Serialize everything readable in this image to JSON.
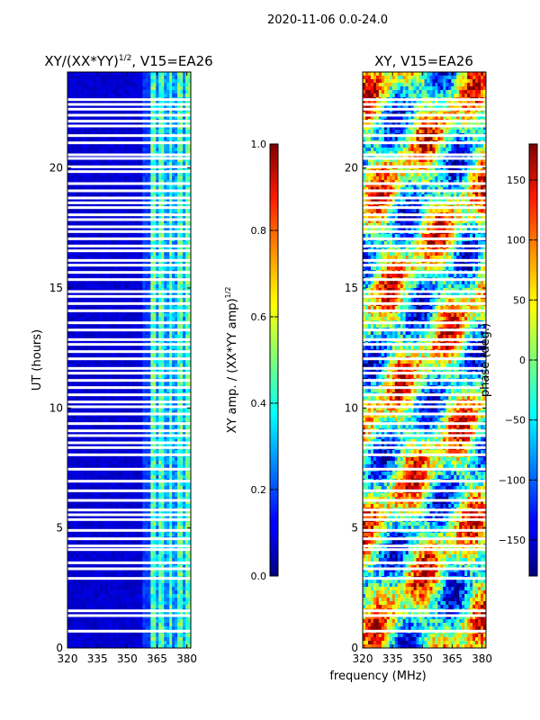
{
  "figure_title": "2020-11-06 0.0-24.0",
  "xlabel_shared": "frequency (MHz)",
  "chart_data": [
    {
      "type": "heatmap",
      "title": "XY/(XX*YY)",
      "title_sup": "1/2",
      "title_suffix": ", V15=EA26",
      "ylabel": "UT (hours)",
      "xlim": [
        320,
        382
      ],
      "ylim": [
        0,
        24
      ],
      "xticks": [
        320,
        335,
        350,
        365,
        380
      ],
      "yticks": [
        0,
        5,
        10,
        15,
        20
      ],
      "colormap": "jet",
      "colorbar": {
        "label": "XY amp. / (XX*YY amp)",
        "label_sup": "1/2",
        "range": [
          0.0,
          1.0
        ],
        "ticks": [
          0.0,
          0.2,
          0.4,
          0.6,
          0.8,
          1.0
        ],
        "tick_labels": [
          "0.0",
          "0.2",
          "0.4",
          "0.6",
          "0.8",
          "1.0"
        ]
      },
      "band_structure": [
        {
          "from": 320,
          "to": 358,
          "typical_value": 0.05
        },
        {
          "from": 358,
          "to": 362,
          "typical_value": 0.15
        },
        {
          "from": 362,
          "to": 382,
          "typical_value": 0.4
        }
      ]
    },
    {
      "type": "heatmap",
      "title": "XY, V15=EA26",
      "xlim": [
        320,
        382
      ],
      "ylim": [
        0,
        24
      ],
      "xticks": [
        320,
        335,
        350,
        365,
        380
      ],
      "yticks": [
        0,
        5,
        10,
        15,
        20
      ],
      "colormap": "jet",
      "colorbar": {
        "label": "phase (deg.)",
        "range": [
          -180,
          180
        ],
        "ticks": [
          -150,
          -100,
          -50,
          0,
          50,
          100,
          150
        ],
        "tick_labels": [
          "−150",
          "−100",
          "−50",
          "0",
          "50",
          "100",
          "150"
        ]
      }
    }
  ],
  "flagged_hours": [
    0.7,
    1.35,
    1.55,
    2.9,
    3.3,
    3.55,
    4.1,
    4.25,
    4.55,
    4.9,
    5.35,
    5.55,
    5.75,
    6.15,
    6.55,
    6.95,
    7.45,
    8.05,
    8.35,
    8.55,
    8.85,
    9.05,
    9.35,
    9.75,
    10.05,
    10.25,
    10.55,
    10.85,
    11.15,
    11.45,
    11.65,
    12.05,
    12.35,
    12.65,
    12.85,
    13.25,
    13.55,
    14.05,
    14.35,
    14.65,
    14.85,
    15.35,
    15.65,
    15.95,
    16.15,
    16.55,
    16.75,
    17.05,
    17.35,
    17.55,
    17.85,
    18.05,
    18.35,
    18.55,
    18.75,
    19.05,
    19.35,
    19.85,
    20.05,
    20.4,
    20.55,
    21.05,
    21.35,
    21.75,
    21.95,
    22.2,
    22.45,
    22.65,
    22.85
  ]
}
